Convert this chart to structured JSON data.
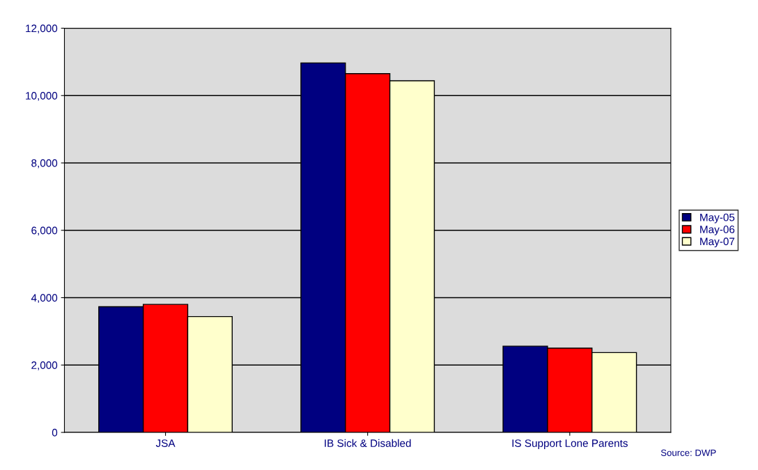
{
  "chart_data": {
    "type": "bar",
    "categories": [
      "JSA",
      "IB Sick & Disabled",
      "IS Support Lone Parents"
    ],
    "series": [
      {
        "name": "May-05",
        "color": "#000080",
        "values": [
          3730,
          10970,
          2560
        ]
      },
      {
        "name": "May-06",
        "color": "#ff0000",
        "values": [
          3800,
          10650,
          2500
        ]
      },
      {
        "name": "May-07",
        "color": "#ffffcc",
        "values": [
          3440,
          10440,
          2370
        ]
      }
    ],
    "ylim": [
      0,
      12000
    ],
    "yticks": [
      {
        "value": 0,
        "label": "0"
      },
      {
        "value": 2000,
        "label": "2,000"
      },
      {
        "value": 4000,
        "label": "4,000"
      },
      {
        "value": 6000,
        "label": "6,000"
      },
      {
        "value": 8000,
        "label": "8,000"
      },
      {
        "value": 10000,
        "label": "10,000"
      },
      {
        "value": 12000,
        "label": "12,000"
      }
    ],
    "grid": "y",
    "legend": "right",
    "annotations": [
      "Source: DWP"
    ]
  }
}
